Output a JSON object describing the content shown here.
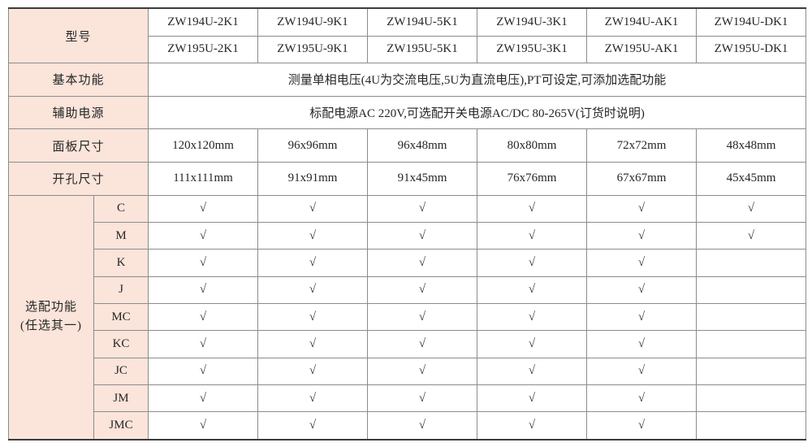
{
  "colors": {
    "header_bg": "#fbe4da",
    "grid_line": "#8c8c8c",
    "outer_line": "#3b3b3b",
    "edge_line": "#c2c2c2",
    "text": "#262626"
  },
  "check_glyph": "√",
  "table": {
    "model_label": "型号",
    "model_rows": [
      [
        "ZW194U-2K1",
        "ZW194U-9K1",
        "ZW194U-5K1",
        "ZW194U-3K1",
        "ZW194U-AK1",
        "ZW194U-DK1"
      ],
      [
        "ZW195U-2K1",
        "ZW195U-9K1",
        "ZW195U-5K1",
        "ZW195U-3K1",
        "ZW195U-AK1",
        "ZW195U-DK1"
      ]
    ],
    "basic_function": {
      "label": "基本功能",
      "value": "测量单相电压(4U为交流电压,5U为直流电压),PT可设定,可添加选配功能"
    },
    "aux_power": {
      "label": "辅助电源",
      "value": "标配电源AC 220V,可选配开关电源AC/DC 80-265V(订货时说明)"
    },
    "panel_size": {
      "label": "面板尺寸",
      "values": [
        "120x120mm",
        "96x96mm",
        "96x48mm",
        "80x80mm",
        "72x72mm",
        "48x48mm"
      ]
    },
    "cutout_size": {
      "label": "开孔尺寸",
      "values": [
        "111x111mm",
        "91x91mm",
        "91x45mm",
        "76x76mm",
        "67x67mm",
        "45x45mm"
      ]
    },
    "options_label_1": "选配功能",
    "options_label_2": "(任选其一)",
    "option_codes": [
      "C",
      "M",
      "K",
      "J",
      "MC",
      "KC",
      "JC",
      "JM",
      "JMC"
    ],
    "option_checks": [
      [
        1,
        1,
        1,
        1,
        1,
        1
      ],
      [
        1,
        1,
        1,
        1,
        1,
        1
      ],
      [
        1,
        1,
        1,
        1,
        1,
        0
      ],
      [
        1,
        1,
        1,
        1,
        1,
        0
      ],
      [
        1,
        1,
        1,
        1,
        1,
        0
      ],
      [
        1,
        1,
        1,
        1,
        1,
        0
      ],
      [
        1,
        1,
        1,
        1,
        1,
        0
      ],
      [
        1,
        1,
        1,
        1,
        1,
        0
      ],
      [
        1,
        1,
        1,
        1,
        1,
        0
      ]
    ]
  }
}
